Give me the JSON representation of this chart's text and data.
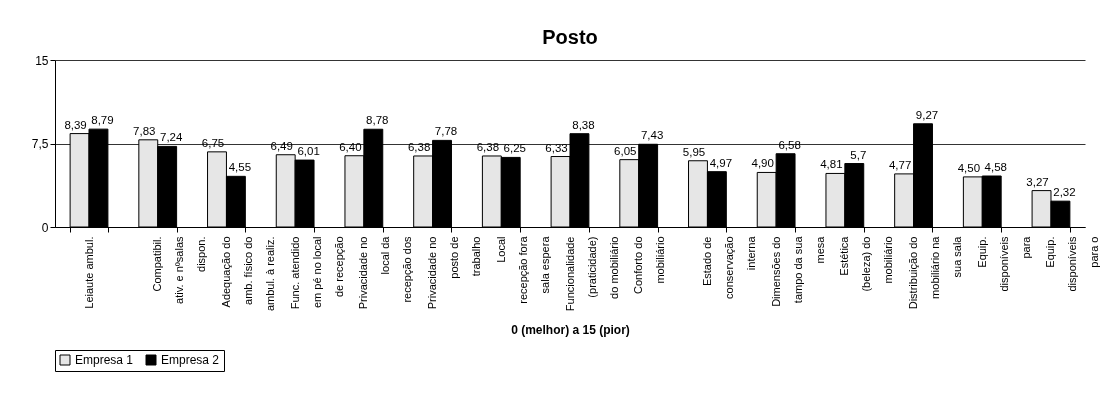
{
  "chart_data": {
    "type": "bar",
    "title": "Posto",
    "xlabel": "0 (melhor) a 15 (pior)",
    "categories": [
      "Leiaute ambul.",
      "Compatibil.\nativ. e nºsalas\ndispon.",
      "Adequação do\namb. físico do\nambul. à realiz.",
      "Func. atendido\nem pé no local\nde recepção",
      "Privacidade no\nlocal da\nrecepção dos",
      "Privacidade no\nposto de\ntrabalho",
      "Local\nrecepção fora\nsala espera",
      "Funcionalidade\n(praticidade)\ndo mobiliário",
      "Conforto do\nmobiliário",
      "Estado de\nconservação\ninterna",
      "Dimensões do\ntampo da sua\nmesa",
      "Estética\n(beleza) do\nmobiliário",
      "Distribuição do\nmobiliário na\nsua sala",
      "Equip.\ndisponíveis\npara",
      "Equip.\ndisponíveis\npara o"
    ],
    "series": [
      {
        "name": "Empresa 1",
        "color": "#e6e6e6",
        "values": [
          8.39,
          7.83,
          6.75,
          6.49,
          6.4,
          6.38,
          6.38,
          6.33,
          6.05,
          5.95,
          4.9,
          4.81,
          4.77,
          4.5,
          3.27
        ],
        "value_labels": [
          "8,39",
          "7,83",
          "6,75",
          "6,49",
          "6,40",
          "6,38",
          "6,38",
          "6,33",
          "6,05",
          "5,95",
          "4,90",
          "4,81",
          "4,77",
          "4,50",
          "3,27"
        ]
      },
      {
        "name": "Empresa 2",
        "color": "#000000",
        "values": [
          8.79,
          7.24,
          4.55,
          6.01,
          8.78,
          7.78,
          6.25,
          8.38,
          7.43,
          4.97,
          6.58,
          5.7,
          9.27,
          4.58,
          2.32
        ],
        "value_labels": [
          "8,79",
          "7,24",
          "4,55",
          "6,01",
          "8,78",
          "7,78",
          "6,25",
          "8,38",
          "7,43",
          "4,97",
          "6,58",
          "5,7",
          "9,27",
          "4,58",
          "2,32"
        ]
      }
    ],
    "ylim": [
      0,
      15
    ],
    "yticks": [
      0,
      {
        "value": 7.5,
        "label": "7,5"
      },
      15
    ],
    "grid": "y",
    "legend": "bottom"
  }
}
